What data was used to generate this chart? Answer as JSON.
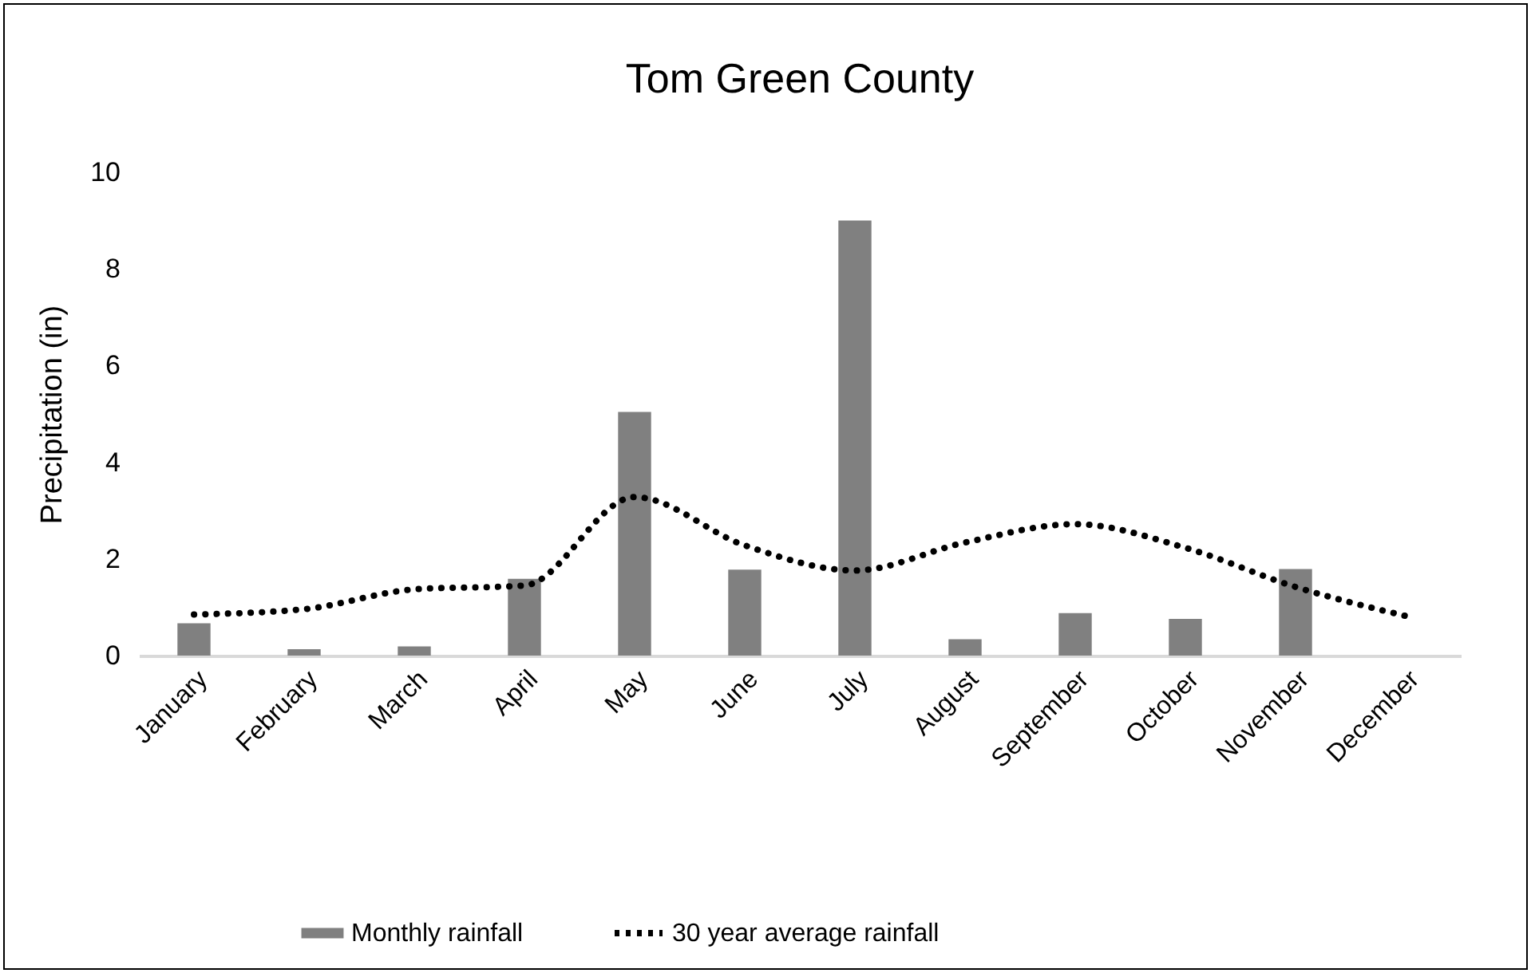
{
  "chart_data": {
    "type": "bar",
    "title": "Tom Green County",
    "ylabel": "Precipitation (in)",
    "categories": [
      "January",
      "February",
      "March",
      "April",
      "May",
      "June",
      "July",
      "August",
      "September",
      "October",
      "November",
      "December"
    ],
    "series": [
      {
        "name": "Monthly rainfall",
        "color": "#808080",
        "values": [
          0.67,
          0.13,
          0.19,
          1.59,
          5.04,
          1.78,
          9.0,
          0.34,
          0.88,
          0.76,
          1.79,
          0
        ]
      },
      {
        "name": "30 year average rainfall",
        "type": "line",
        "color": "#000000",
        "line_style": "dotted",
        "values": [
          0.85,
          0.96,
          1.37,
          1.45,
          3.28,
          2.28,
          1.76,
          2.34,
          2.72,
          2.23,
          1.42,
          0.82
        ]
      }
    ],
    "ylim": [
      0,
      10
    ],
    "yticks": [
      0,
      2,
      4,
      6,
      8,
      10
    ],
    "grid": false,
    "legend": "bottom"
  }
}
